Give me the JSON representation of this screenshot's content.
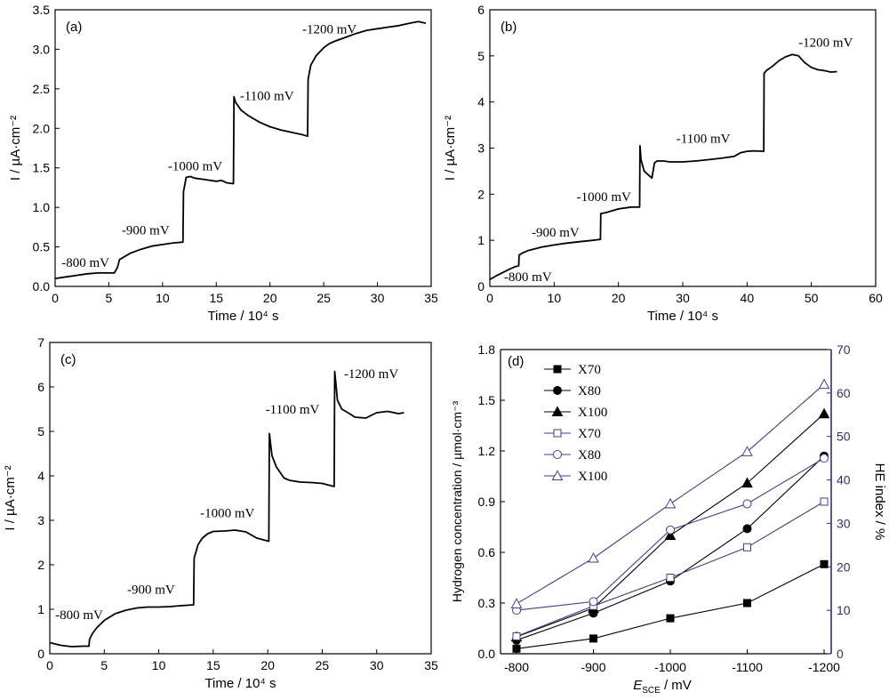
{
  "figure": {
    "panels": [
      {
        "id": "a",
        "label": "(a)",
        "xlabel": "Time / 10⁴ s",
        "ylabel": "I / µA·cm⁻²",
        "xlim": [
          0,
          35
        ],
        "ylim": [
          0,
          3.5
        ],
        "xticks": [
          0,
          5,
          10,
          15,
          20,
          25,
          30,
          35
        ],
        "yticks": [
          0.0,
          0.5,
          1.0,
          1.5,
          2.0,
          2.5,
          3.0,
          3.5
        ],
        "ytick_format": 1,
        "annotations": [
          {
            "text": "-800 mV",
            "x": 0.6,
            "y": 0.25
          },
          {
            "text": "-900 mV",
            "x": 6.2,
            "y": 0.66
          },
          {
            "text": "-1000 mV",
            "x": 10.5,
            "y": 1.47
          },
          {
            "text": "-1100 mV",
            "x": 17.2,
            "y": 2.36
          },
          {
            "text": "-1200 mV",
            "x": 23.0,
            "y": 3.2
          }
        ]
      },
      {
        "id": "b",
        "label": "(b)",
        "xlabel": "Time / 10⁴ s",
        "ylabel": "I / µA·cm⁻²",
        "xlim": [
          0,
          60
        ],
        "ylim": [
          0,
          6
        ],
        "xticks": [
          0,
          10,
          20,
          30,
          40,
          50,
          60
        ],
        "yticks": [
          0,
          1,
          2,
          3,
          4,
          5,
          6
        ],
        "ytick_format": 0,
        "annotations": [
          {
            "text": "-800 mV",
            "x": 2.2,
            "y": 0.12
          },
          {
            "text": "-900 mV",
            "x": 6.5,
            "y": 1.08
          },
          {
            "text": "-1000 mV",
            "x": 13.5,
            "y": 1.85
          },
          {
            "text": "-1100 mV",
            "x": 29.0,
            "y": 3.12
          },
          {
            "text": "-1200 mV",
            "x": 48.0,
            "y": 5.2
          }
        ]
      },
      {
        "id": "c",
        "label": "(c)",
        "xlabel": "Time / 10⁴ s",
        "ylabel": "I / µA·cm⁻²",
        "xlim": [
          0,
          35
        ],
        "ylim": [
          0,
          7
        ],
        "xticks": [
          0,
          5,
          10,
          15,
          20,
          25,
          30,
          35
        ],
        "yticks": [
          0,
          1,
          2,
          3,
          4,
          5,
          6,
          7
        ],
        "ytick_format": 0,
        "annotations": [
          {
            "text": "-800 mV",
            "x": 0.5,
            "y": 0.78
          },
          {
            "text": "-900 mV",
            "x": 7.1,
            "y": 1.35
          },
          {
            "text": "-1000 mV",
            "x": 13.8,
            "y": 3.07
          },
          {
            "text": "-1100 mV",
            "x": 19.8,
            "y": 5.4
          },
          {
            "text": "-1200 mV",
            "x": 27.0,
            "y": 6.2
          }
        ]
      }
    ],
    "panel_d": {
      "label": "(d)",
      "xlabel_main": "E",
      "xlabel_sub": "SCE",
      "xlabel_tail": " / mV",
      "ylabel_left": "Hydrogen concentration / µmol·cm⁻³",
      "ylabel_right": "HE index / %",
      "xticks": [
        "-800",
        "-900",
        "-1000",
        "-1100",
        "-1200"
      ],
      "yticks_left": [
        "0.0",
        "0.3",
        "0.6",
        "0.9",
        "1.2",
        "1.5",
        "1.8"
      ],
      "yticks_right": [
        "0",
        "10",
        "20",
        "30",
        "40",
        "50",
        "60",
        "70"
      ],
      "right_axis_color": "#3a2a6e",
      "series_line_color": "#000000",
      "open_series_color": "#4a3a8a"
    }
  },
  "chart_data": [
    {
      "type": "line",
      "panel": "(a)",
      "xlabel": "Time / 10⁴ s",
      "ylabel": "I / µA·cm⁻²",
      "xlim": [
        0,
        35
      ],
      "ylim": [
        0,
        3.5
      ],
      "series": [
        {
          "x": [
            0,
            1,
            2,
            3,
            4,
            5,
            5.5,
            5.8,
            6.0,
            7,
            8,
            9,
            10,
            11,
            11.9,
            11.95,
            12.2,
            12.6,
            13,
            14,
            15,
            15.5,
            16,
            16.6,
            16.65,
            16.8,
            17.3,
            18,
            19,
            20,
            21,
            22,
            23,
            23.5,
            23.55,
            23.8,
            24.3,
            25,
            25.5,
            26,
            27,
            28,
            29,
            30,
            31,
            32,
            33,
            33.8,
            34.5
          ],
          "y": [
            0.1,
            0.12,
            0.14,
            0.16,
            0.17,
            0.17,
            0.17,
            0.24,
            0.34,
            0.42,
            0.47,
            0.51,
            0.53,
            0.55,
            0.56,
            1.2,
            1.38,
            1.39,
            1.37,
            1.35,
            1.33,
            1.34,
            1.31,
            1.3,
            2.4,
            2.33,
            2.23,
            2.16,
            2.08,
            2.02,
            1.98,
            1.95,
            1.92,
            1.9,
            2.62,
            2.8,
            2.92,
            3.02,
            3.07,
            3.1,
            3.15,
            3.2,
            3.24,
            3.26,
            3.28,
            3.3,
            3.33,
            3.35,
            3.33
          ]
        }
      ]
    },
    {
      "type": "line",
      "panel": "(b)",
      "xlabel": "Time / 10⁴ s",
      "ylabel": "I / µA·cm⁻²",
      "xlim": [
        0,
        60
      ],
      "ylim": [
        0,
        6
      ],
      "series": [
        {
          "x": [
            0,
            1,
            2,
            3,
            4,
            4.5,
            4.55,
            5,
            6,
            8,
            10,
            12,
            14,
            16,
            17.2,
            17.25,
            18,
            20,
            22,
            23.3,
            23.35,
            23.5,
            24,
            25.2,
            25.6,
            26,
            27,
            28,
            30,
            32,
            34,
            36,
            38,
            39,
            40,
            41,
            42.6,
            42.65,
            43,
            44,
            45,
            46,
            47,
            48,
            49,
            50,
            51,
            52,
            53,
            54
          ],
          "y": [
            0.15,
            0.23,
            0.3,
            0.37,
            0.43,
            0.45,
            0.68,
            0.72,
            0.78,
            0.85,
            0.9,
            0.94,
            0.97,
            1.0,
            1.02,
            1.58,
            1.6,
            1.68,
            1.72,
            1.72,
            3.05,
            2.75,
            2.5,
            2.35,
            2.68,
            2.72,
            2.72,
            2.7,
            2.7,
            2.72,
            2.75,
            2.78,
            2.82,
            2.9,
            2.93,
            2.94,
            2.93,
            4.62,
            4.68,
            4.78,
            4.9,
            4.98,
            5.03,
            5.0,
            4.85,
            4.75,
            4.7,
            4.68,
            4.65,
            4.66
          ]
        }
      ]
    },
    {
      "type": "line",
      "panel": "(c)",
      "xlabel": "Time / 10⁴ s",
      "ylabel": "I / µA·cm⁻²",
      "xlim": [
        0,
        35
      ],
      "ylim": [
        0,
        7
      ],
      "series": [
        {
          "x": [
            0,
            0.5,
            1,
            2,
            3,
            3.6,
            3.65,
            3.9,
            4.3,
            5,
            6,
            7,
            8,
            9,
            10,
            11,
            12,
            13.2,
            13.25,
            13.6,
            14,
            14.5,
            15,
            16,
            17,
            18,
            19,
            20.1,
            20.15,
            20.4,
            20.8,
            21.5,
            22,
            23,
            24,
            25,
            26.1,
            26.15,
            26.4,
            26.8,
            27.5,
            28,
            29,
            30,
            31,
            32,
            32.5
          ],
          "y": [
            0.25,
            0.22,
            0.19,
            0.16,
            0.17,
            0.17,
            0.32,
            0.45,
            0.58,
            0.75,
            0.9,
            0.98,
            1.03,
            1.05,
            1.05,
            1.06,
            1.08,
            1.1,
            2.15,
            2.45,
            2.6,
            2.7,
            2.75,
            2.76,
            2.78,
            2.74,
            2.6,
            2.53,
            4.95,
            4.45,
            4.2,
            3.95,
            3.9,
            3.86,
            3.85,
            3.83,
            3.76,
            6.35,
            5.7,
            5.5,
            5.4,
            5.32,
            5.3,
            5.42,
            5.45,
            5.4,
            5.42
          ]
        }
      ]
    },
    {
      "type": "line",
      "panel": "(d)",
      "xlabel": "E_SCE / mV",
      "ylabel": "Hydrogen concentration / µmol·cm⁻³",
      "ylabel_right": "HE index / %",
      "categories": [
        "-800",
        "-900",
        "-1000",
        "-1100",
        "-1200"
      ],
      "ylim": [
        0,
        1.8
      ],
      "ylim_right": [
        0,
        70
      ],
      "legend": "top-left",
      "series": [
        {
          "name": "X70",
          "axis": "left",
          "marker": "filled-square",
          "values": [
            0.03,
            0.09,
            0.21,
            0.3,
            0.53
          ]
        },
        {
          "name": "X80",
          "axis": "left",
          "marker": "filled-circle",
          "values": [
            0.08,
            0.24,
            0.43,
            0.74,
            1.17
          ]
        },
        {
          "name": "X100",
          "axis": "left",
          "marker": "filled-triangle",
          "values": [
            0.1,
            0.27,
            0.7,
            1.01,
            1.42
          ]
        },
        {
          "name": "X70",
          "axis": "right",
          "marker": "open-square",
          "values": [
            4,
            11,
            17.5,
            24.5,
            35
          ]
        },
        {
          "name": "X80",
          "axis": "right",
          "marker": "open-circle",
          "values": [
            10,
            12,
            28.5,
            34.5,
            45
          ]
        },
        {
          "name": "X100",
          "axis": "right",
          "marker": "open-triangle",
          "values": [
            11.5,
            22,
            34.5,
            46.5,
            62
          ]
        }
      ]
    }
  ]
}
